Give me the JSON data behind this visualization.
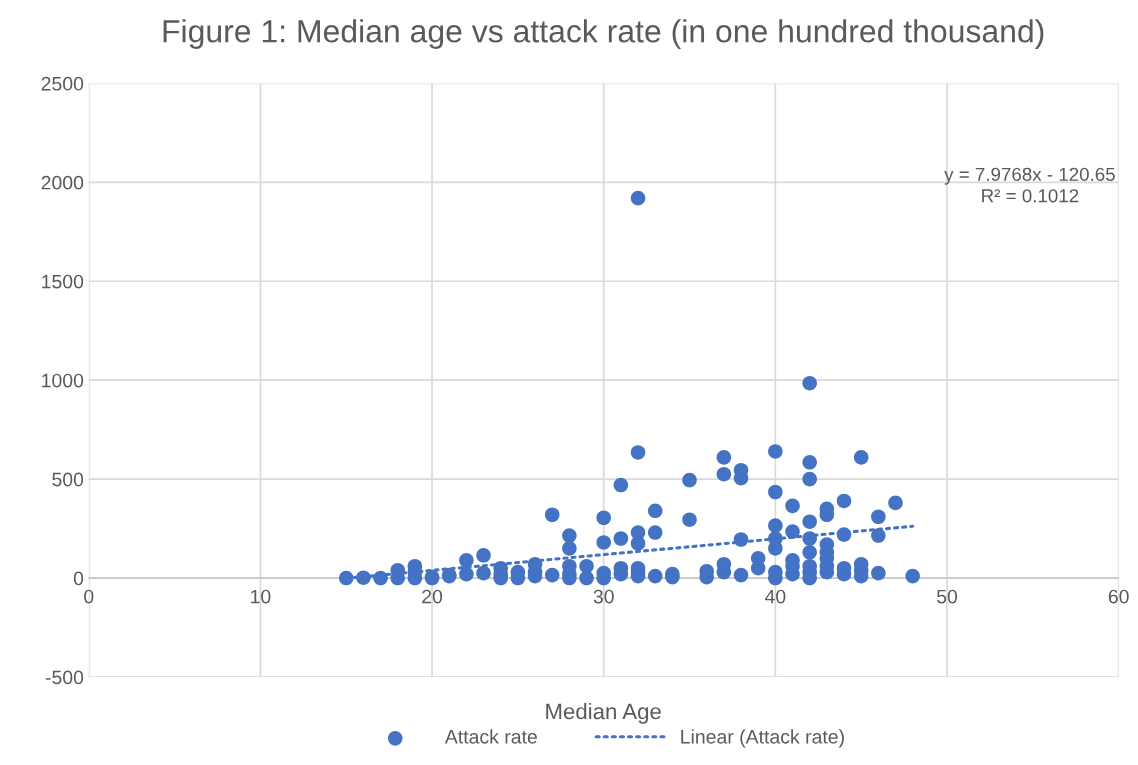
{
  "chart_data": {
    "type": "scatter",
    "title": "Figure 1: Median age vs attack rate (in one hundred thousand)",
    "xlabel": "Median Age",
    "series": [
      {
        "name": "Attack rate",
        "color": "#4472c4",
        "marker": "circle",
        "x": [
          15,
          16,
          17,
          18,
          18,
          19,
          19,
          19,
          20,
          20,
          21,
          21,
          22,
          22,
          23,
          23,
          24,
          24,
          24,
          25,
          25,
          26,
          26,
          26,
          27,
          27,
          28,
          28,
          28,
          28,
          28,
          29,
          29,
          30,
          30,
          30,
          30,
          31,
          31,
          31,
          31,
          32,
          32,
          32,
          32,
          32,
          32,
          32,
          33,
          33,
          33,
          34,
          34,
          35,
          35,
          36,
          36,
          37,
          37,
          37,
          37,
          38,
          38,
          38,
          38,
          39,
          39,
          40,
          40,
          40,
          40,
          40,
          40,
          40,
          41,
          41,
          41,
          41,
          41,
          42,
          42,
          42,
          42,
          42,
          42,
          42,
          42,
          42,
          43,
          43,
          43,
          43,
          43,
          43,
          43,
          44,
          44,
          44,
          44,
          45,
          45,
          45,
          45,
          46,
          46,
          46,
          47,
          48
        ],
        "values": [
          0,
          2,
          0,
          0,
          40,
          0,
          30,
          60,
          0,
          5,
          10,
          15,
          20,
          90,
          25,
          115,
          0,
          20,
          50,
          0,
          30,
          10,
          30,
          70,
          15,
          320,
          0,
          20,
          60,
          150,
          215,
          0,
          60,
          0,
          25,
          180,
          305,
          20,
          50,
          200,
          470,
          10,
          30,
          50,
          175,
          230,
          635,
          1920,
          10,
          230,
          340,
          5,
          20,
          295,
          495,
          5,
          35,
          30,
          70,
          525,
          610,
          15,
          195,
          505,
          545,
          50,
          100,
          0,
          30,
          150,
          200,
          265,
          435,
          640,
          20,
          60,
          90,
          235,
          365,
          0,
          30,
          60,
          130,
          200,
          285,
          500,
          585,
          985,
          30,
          60,
          100,
          130,
          170,
          320,
          350,
          20,
          50,
          220,
          390,
          10,
          40,
          70,
          610,
          25,
          215,
          310,
          380,
          10
        ]
      },
      {
        "name": "Linear (Attack rate)",
        "type": "line",
        "color": "#4472c4",
        "line_style": "dotted",
        "marker": "none",
        "x": [
          15,
          48
        ],
        "values": [
          -1,
          262
        ]
      }
    ],
    "annotations": [
      "y = 7.9768x - 120.65",
      "R² = 0.1012"
    ],
    "xlim": [
      0,
      60
    ],
    "xticks": [
      0,
      10,
      20,
      30,
      40,
      50,
      60
    ],
    "ylim": [
      -500,
      2500
    ],
    "yticks": [
      -500,
      0,
      500,
      1000,
      1500,
      2000,
      2500
    ],
    "grid": true,
    "legend": "bottom"
  }
}
